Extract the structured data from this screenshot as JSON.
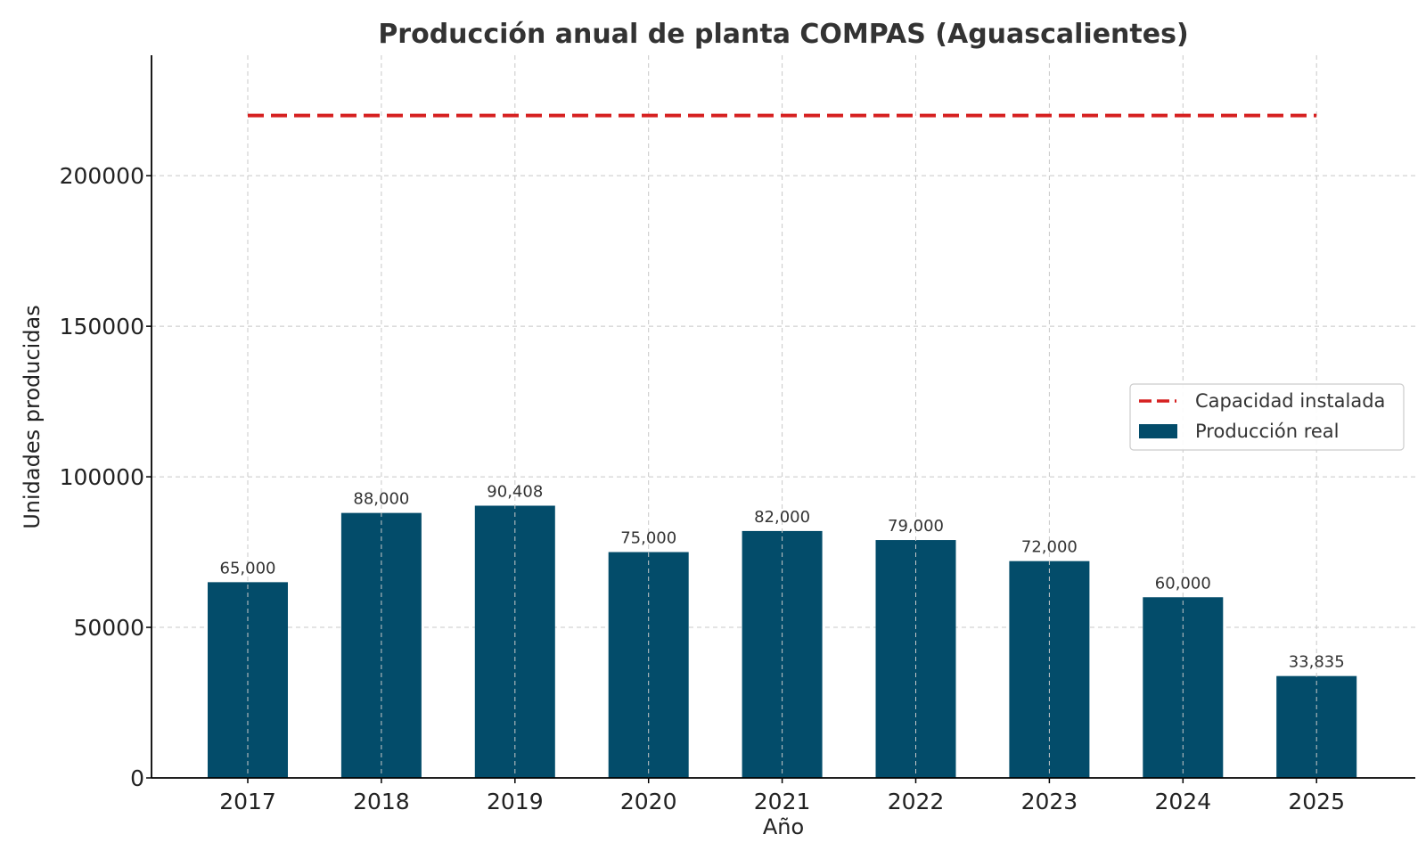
{
  "chart_data": {
    "type": "bar",
    "title": "Producción anual de planta COMPAS (Aguascalientes)",
    "xlabel": "Año",
    "ylabel": "Unidades producidas",
    "categories": [
      "2017",
      "2018",
      "2019",
      "2020",
      "2021",
      "2022",
      "2023",
      "2024",
      "2025"
    ],
    "series": [
      {
        "name": "Producción real",
        "kind": "bar",
        "color": "#034C6A",
        "values": [
          65000,
          88000,
          90408,
          75000,
          82000,
          79000,
          72000,
          60000,
          33835
        ],
        "labels": [
          "65,000",
          "88,000",
          "90,408",
          "75,000",
          "82,000",
          "79,000",
          "72,000",
          "60,000",
          "33,835"
        ]
      },
      {
        "name": "Capacidad instalada",
        "kind": "line",
        "style": "dashed",
        "color": "#D62020",
        "value": 220000
      }
    ],
    "ylim": [
      0,
      240000
    ],
    "yticks": [
      0,
      50000,
      100000,
      150000,
      200000
    ],
    "ytick_labels": [
      "0",
      "50000",
      "100000",
      "150000",
      "200000"
    ],
    "grid": true,
    "legend_position": "right",
    "legend_order": [
      "Capacidad instalada",
      "Producción real"
    ]
  }
}
